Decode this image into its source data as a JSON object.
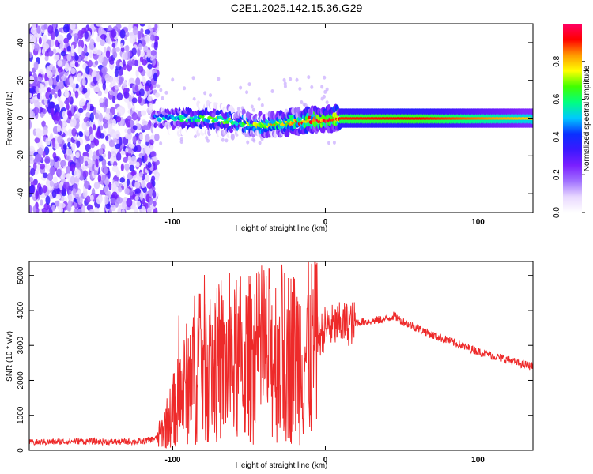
{
  "figure": {
    "title": "C2E1.2025.142.15.36.G29"
  },
  "colors": {
    "snr_line": "#ee2a2a",
    "frame": "#000000",
    "background": "#ffffff"
  },
  "colorbar": {
    "label": "Normalized spectral amplitude",
    "ticks": [
      "0.0",
      "0.2",
      "0.4",
      "0.6",
      "0.8"
    ],
    "colormap": [
      "#ffffff",
      "#e8d8ff",
      "#a070ff",
      "#7a1fff",
      "#3a18ff",
      "#0a30ff",
      "#00c8ff",
      "#00ff80",
      "#40ff00",
      "#ffff00",
      "#ff9900",
      "#ff0000",
      "#ff0066"
    ]
  },
  "chart_data": [
    {
      "type": "heatmap",
      "title": "C2E1.2025.142.15.36.G29",
      "xlabel": "Height of straight line (km)",
      "ylabel": "Frequency (Hz)",
      "xlim": [
        -194,
        136
      ],
      "ylim": [
        -50,
        50
      ],
      "xticks": [
        "-100",
        "0",
        "100"
      ],
      "yticks": [
        "-40",
        "-20",
        "0",
        "20",
        "40"
      ],
      "grid": false,
      "colorbar_range": [
        0,
        1
      ],
      "description_points": [
        {
          "height_km": -190,
          "freq_hz": 0,
          "amplitude": 0.2
        },
        {
          "height_km": -110,
          "freq_hz": 0,
          "amplitude": 0.45
        },
        {
          "height_km": -80,
          "freq_hz": 0,
          "amplitude": 0.55
        },
        {
          "height_km": -40,
          "freq_hz": -4,
          "amplitude": 0.7
        },
        {
          "height_km": -10,
          "freq_hz": -1,
          "amplitude": 0.85
        },
        {
          "height_km": 10,
          "freq_hz": 0,
          "amplitude": 0.9
        },
        {
          "height_km": 60,
          "freq_hz": 0,
          "amplitude": 0.92
        },
        {
          "height_km": 130,
          "freq_hz": 0,
          "amplitude": 0.8
        }
      ]
    },
    {
      "type": "line",
      "xlabel": "Height of straight line (km)",
      "ylabel": "SNR (10 * v/v)",
      "xlim": [
        -194,
        136
      ],
      "ylim": [
        0,
        5400
      ],
      "xticks": [
        "-100",
        "0",
        "100"
      ],
      "yticks": [
        "0",
        "1000",
        "2000",
        "3000",
        "4000",
        "5000"
      ],
      "grid": false,
      "series": [
        {
          "x": [
            -194,
            -180,
            -160,
            -140,
            -120,
            -110,
            -105,
            -100,
            -95,
            -90,
            -85,
            -80,
            -75,
            -70,
            -60,
            -50,
            -40,
            -30,
            -20,
            -10,
            -5,
            0,
            5,
            10,
            20,
            30,
            40,
            45,
            50,
            60,
            70,
            80,
            90,
            100,
            110,
            120,
            130,
            136
          ],
          "y": [
            220,
            240,
            260,
            240,
            250,
            350,
            700,
            1100,
            1500,
            2000,
            2400,
            2600,
            2500,
            2400,
            2400,
            2600,
            2700,
            2800,
            2700,
            2800,
            3200,
            3500,
            3550,
            3600,
            3650,
            3700,
            3750,
            3850,
            3700,
            3500,
            3300,
            3150,
            2980,
            2830,
            2700,
            2580,
            2450,
            2400
          ]
        }
      ]
    }
  ]
}
